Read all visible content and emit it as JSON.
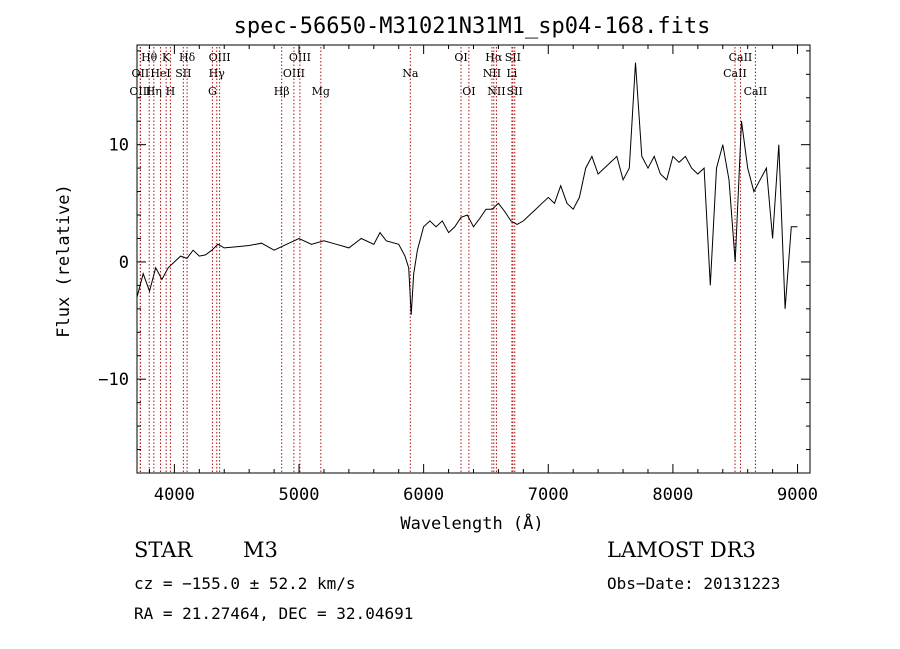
{
  "chart_data": {
    "type": "line",
    "title": "spec-56650-M31021N31M1_sp04-168.fits",
    "xlabel": "Wavelength (Å)",
    "ylabel": "Flux (relative)",
    "xlim": [
      3700,
      9100
    ],
    "ylim": [
      -18,
      18.5
    ],
    "xticks": [
      4000,
      5000,
      6000,
      7000,
      8000,
      9000
    ],
    "yticks": [
      -10,
      0,
      10
    ],
    "grid": false,
    "series": [
      {
        "color": "#000000",
        "x": [
          3700,
          3750,
          3800,
          3850,
          3900,
          3950,
          4000,
          4050,
          4100,
          4150,
          4200,
          4250,
          4300,
          4350,
          4400,
          4500,
          4600,
          4700,
          4800,
          4900,
          5000,
          5100,
          5200,
          5300,
          5400,
          5500,
          5600,
          5650,
          5700,
          5800,
          5850,
          5880,
          5900,
          5920,
          5950,
          6000,
          6050,
          6100,
          6150,
          6200,
          6250,
          6300,
          6350,
          6400,
          6450,
          6500,
          6550,
          6600,
          6650,
          6700,
          6750,
          6800,
          6850,
          6900,
          6950,
          7000,
          7050,
          7100,
          7150,
          7200,
          7250,
          7300,
          7350,
          7400,
          7450,
          7500,
          7550,
          7600,
          7650,
          7700,
          7750,
          7800,
          7850,
          7900,
          7950,
          8000,
          8050,
          8100,
          8150,
          8200,
          8250,
          8300,
          8350,
          8400,
          8450,
          8500,
          8550,
          8600,
          8650,
          8700,
          8750,
          8800,
          8850,
          8900,
          8950,
          9000
        ],
        "values": [
          -3,
          -1,
          -2.5,
          -0.5,
          -1.5,
          -0.5,
          0,
          0.5,
          0.3,
          1,
          0.5,
          0.6,
          1,
          1.5,
          1.2,
          1.3,
          1.4,
          1.6,
          1,
          1.5,
          2,
          1.5,
          1.8,
          1.5,
          1.2,
          2,
          1.5,
          2.5,
          1.8,
          1.5,
          0.5,
          -0.5,
          -4.5,
          -1,
          1,
          3,
          3.5,
          3,
          3.5,
          2.5,
          3,
          3.8,
          4,
          3,
          3.7,
          4.5,
          4.5,
          5,
          4.3,
          3.5,
          3.2,
          3.5,
          4,
          4.5,
          5,
          5.5,
          5,
          6.5,
          5,
          4.5,
          5.5,
          8,
          9,
          7.5,
          8,
          8.5,
          9,
          7,
          8,
          17,
          9,
          8,
          9,
          7.5,
          7,
          9,
          8.5,
          9,
          8,
          7.5,
          8,
          -2,
          8,
          10,
          7,
          0,
          12,
          8,
          6,
          7,
          8,
          2,
          10,
          -4,
          3,
          3
        ]
      }
    ],
    "line_markers": [
      {
        "label": "Hθ",
        "x": 3798,
        "row": 1
      },
      {
        "label": "K",
        "x": 3934,
        "row": 1
      },
      {
        "label": "Hδ",
        "x": 4102,
        "row": 1
      },
      {
        "label": "OIII",
        "x": 4363,
        "row": 1
      },
      {
        "label": "OIII",
        "x": 5007,
        "row": 1
      },
      {
        "label": "OI",
        "x": 6300,
        "row": 1
      },
      {
        "label": "Hα",
        "x": 6563,
        "row": 1
      },
      {
        "label": "SII",
        "x": 6716,
        "row": 1
      },
      {
        "label": "CaII",
        "x": 8542,
        "row": 1
      },
      {
        "label": "OII",
        "x": 3727,
        "row": 2
      },
      {
        "label": "HeI",
        "x": 3889,
        "row": 2
      },
      {
        "label": "SII",
        "x": 4072,
        "row": 2
      },
      {
        "label": "Hγ",
        "x": 4340,
        "row": 2
      },
      {
        "label": "OIII",
        "x": 4959,
        "row": 2
      },
      {
        "label": "Na",
        "x": 5893,
        "row": 2
      },
      {
        "label": "NII",
        "x": 6548,
        "row": 2
      },
      {
        "label": "Li",
        "x": 6708,
        "row": 2
      },
      {
        "label": "CaII",
        "x": 8498,
        "row": 2
      },
      {
        "label": "OIII",
        "x": 3727,
        "row": 3
      },
      {
        "label": "Hη",
        "x": 3835,
        "row": 3
      },
      {
        "label": "H",
        "x": 3968,
        "row": 3
      },
      {
        "label": "G",
        "x": 4305,
        "row": 3
      },
      {
        "label": "Hβ",
        "x": 4861,
        "row": 3
      },
      {
        "label": "Mg",
        "x": 5175,
        "row": 3
      },
      {
        "label": "OI",
        "x": 6363,
        "row": 3
      },
      {
        "label": "NII",
        "x": 6584,
        "row": 3
      },
      {
        "label": "SII",
        "x": 6731,
        "row": 3
      },
      {
        "label": "CaII",
        "x": 8662,
        "row": 3
      }
    ]
  },
  "info": {
    "object_class": "STAR",
    "subclass": "M3",
    "survey": "LAMOST DR3",
    "cz": "cz = −155.0 ± 52.2 km/s",
    "obs_date": "Obs−Date: 20131223",
    "coords": "RA =  21.27464, DEC =  32.04691"
  }
}
